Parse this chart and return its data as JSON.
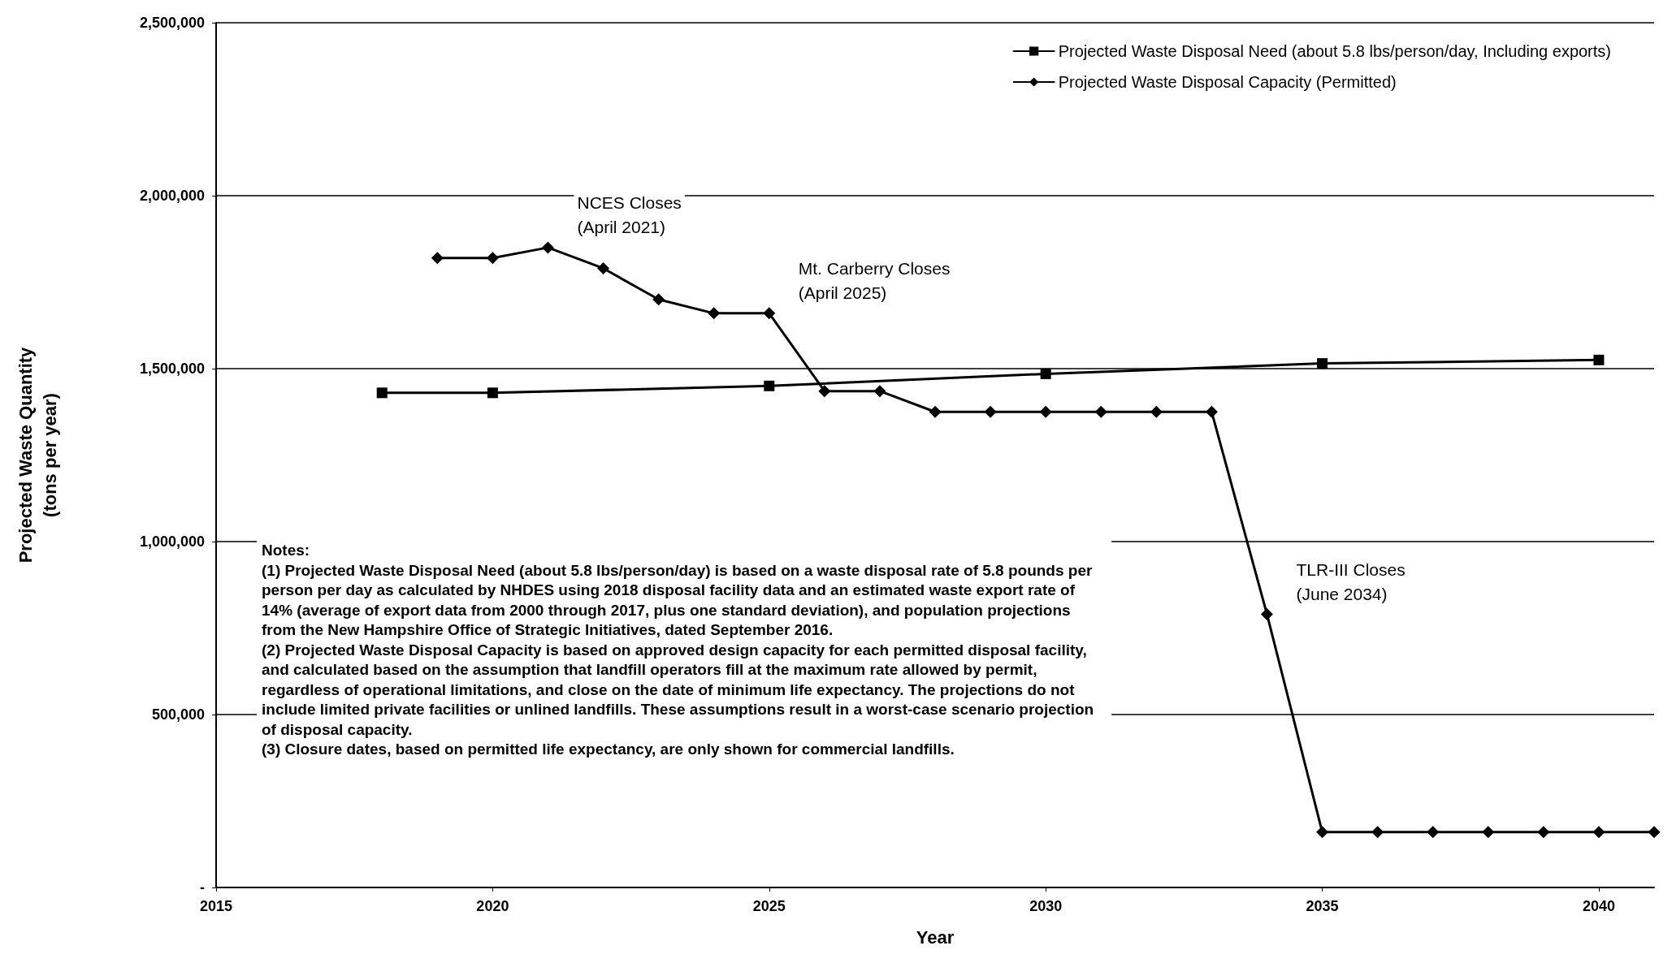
{
  "chart_data": {
    "type": "line",
    "xlabel": "Year",
    "ylabel": "Projected Waste Quantity\n(tons per year)",
    "xlim": [
      2015,
      2041
    ],
    "xticks": [
      2015,
      2020,
      2025,
      2030,
      2035,
      2040
    ],
    "ylim": [
      0,
      2500000
    ],
    "yticks": [
      {
        "value": 0,
        "label": "-"
      },
      {
        "value": 500000,
        "label": "500,000"
      },
      {
        "value": 1000000,
        "label": "1,000,000"
      },
      {
        "value": 1500000,
        "label": "1,500,000"
      },
      {
        "value": 2000000,
        "label": "2,000,000"
      },
      {
        "value": 2500000,
        "label": "2,500,000"
      }
    ],
    "grid": "y",
    "legend": "top right",
    "line_style": "solid",
    "series": [
      {
        "name": "Projected Waste Disposal Need (about 5.8 lbs/person/day, Including exports)",
        "color": "#000000",
        "marker": "square",
        "x": [
          2018,
          2020,
          2025,
          2030,
          2035,
          2040
        ],
        "values": [
          1430000,
          1430000,
          1450000,
          1485000,
          1515000,
          1525000
        ]
      },
      {
        "name": "Projected Waste Disposal Capacity (Permitted)",
        "color": "#000000",
        "marker": "diamond",
        "x": [
          2019,
          2020,
          2021,
          2022,
          2023,
          2024,
          2025,
          2026,
          2027,
          2028,
          2029,
          2030,
          2031,
          2032,
          2033,
          2034,
          2035,
          2036,
          2037,
          2038,
          2039,
          2040,
          2041
        ],
        "values": [
          1820000,
          1820000,
          1850000,
          1790000,
          1700000,
          1660000,
          1660000,
          1435000,
          1435000,
          1375000,
          1375000,
          1375000,
          1375000,
          1375000,
          1375000,
          790000,
          160000,
          160000,
          160000,
          160000,
          160000,
          160000,
          160000
        ]
      }
    ],
    "annotations": [
      {
        "text": "NCES Closes\n(April 2021)",
        "x": 2021,
        "y": 1850000
      },
      {
        "text": "Mt. Carberry Closes\n(April 2025)",
        "x": 2025,
        "y": 1660000
      },
      {
        "text": "TLR-III Closes\n(June 2034)",
        "x": 2034,
        "y": 790000
      },
      "Notes:\n(1) Projected Waste Disposal Need (about 5.8 lbs/person/day) is based on a waste disposal rate of 5.8 pounds per person per day as calculated by NHDES using 2018 disposal facility data and an estimated waste export rate of 14% (average of export data from 2000 through 2017, plus one standard deviation), and population projections from the New Hampshire Office of Strategic Initiatives, dated September 2016.\n(2) Projected Waste Disposal Capacity is based on approved design capacity for each permitted disposal facility, and calculated based on the assumption that landfill operators fill at the maximum rate allowed by permit, regardless of operational limitations, and close on the date of minimum life expectancy. The projections do not include limited private facilities or unlined landfills. These assumptions result in a worst-case scenario projection of disposal capacity.\n(3) Closure dates, based on permitted life expectancy, are only shown for commercial landfills."
    ]
  }
}
